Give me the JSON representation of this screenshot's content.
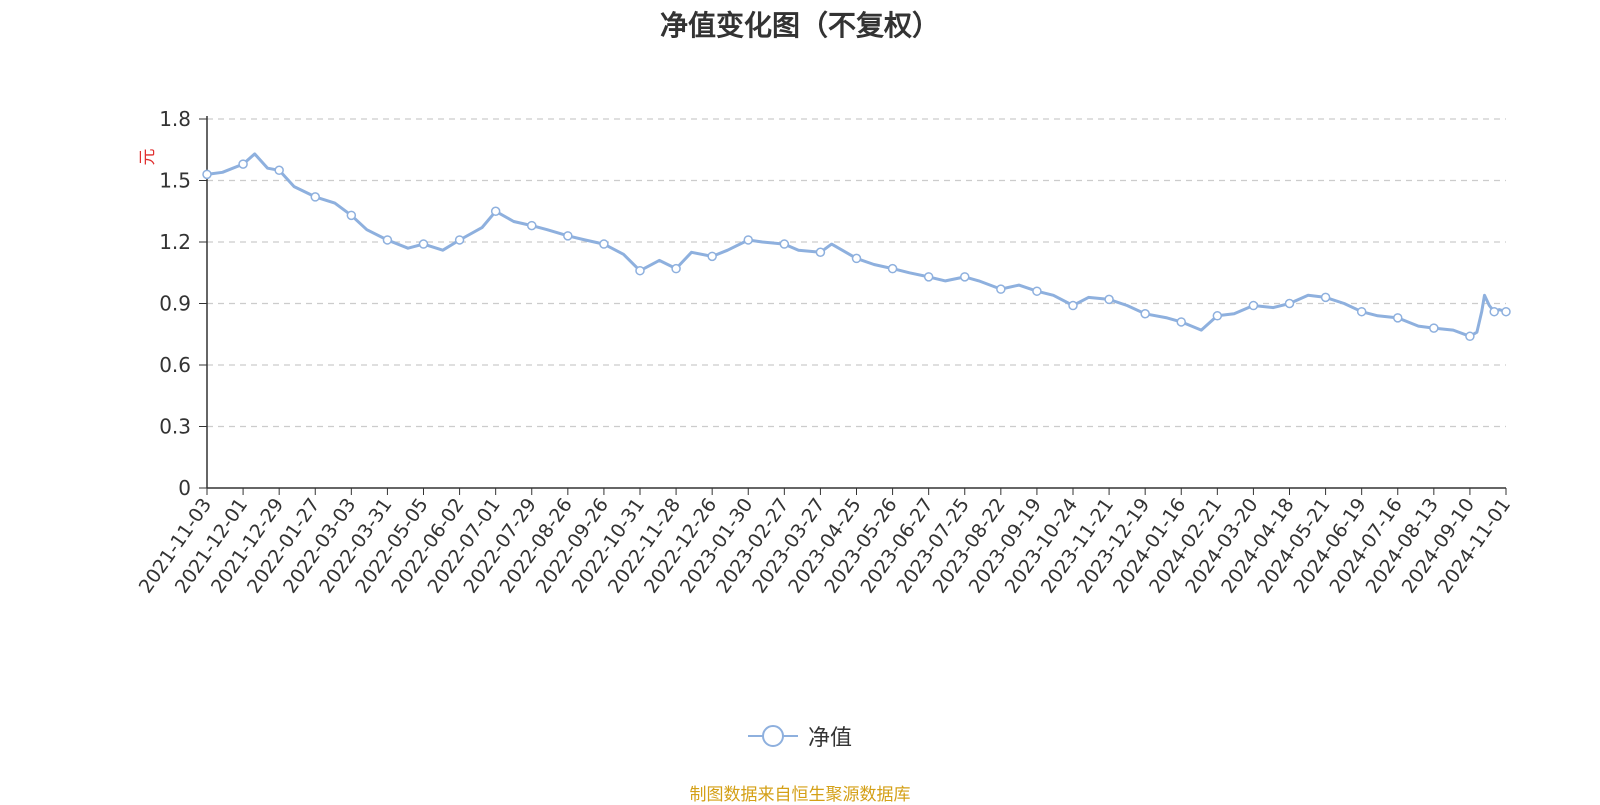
{
  "title": "净值变化图（不复权）",
  "source_note": "制图数据来自恒生聚源数据库",
  "legend_label": "净值",
  "colors": {
    "line": "#8EB0DE",
    "grid": "#cccccc",
    "axis": "#333333",
    "unit": "#e03030",
    "source": "#d4a017"
  },
  "chart_data": {
    "type": "line",
    "title": "净值变化图（不复权）",
    "ylabel": "元",
    "xlabel": "",
    "ylim": [
      0,
      1.8
    ],
    "yticks": [
      "0",
      "0.3",
      "0.6",
      "0.9",
      "1.2",
      "1.5",
      "1.8"
    ],
    "grid": true,
    "legend_position": "bottom-center",
    "x_tick_labels": [
      "2021-11-03",
      "2021-12-01",
      "2021-12-29",
      "2022-01-27",
      "2022-03-03",
      "2022-03-31",
      "2022-05-05",
      "2022-06-02",
      "2022-07-01",
      "2022-07-29",
      "2022-08-26",
      "2022-09-26",
      "2022-10-31",
      "2022-11-28",
      "2022-12-26",
      "2023-01-30",
      "2023-02-27",
      "2023-03-27",
      "2023-04-25",
      "2023-05-26",
      "2023-06-27",
      "2023-07-25",
      "2023-08-22",
      "2023-09-19",
      "2023-10-24",
      "2023-11-21",
      "2023-12-19",
      "2024-01-16",
      "2024-02-21",
      "2024-03-20",
      "2024-04-18",
      "2024-05-21",
      "2024-06-19",
      "2024-07-16",
      "2024-08-13",
      "2024-09-10",
      "2024-11-01"
    ],
    "series": [
      {
        "name": "净值",
        "marker": "circle",
        "points": [
          [
            "2021-11-03",
            1.53
          ],
          [
            "2021-11-15",
            1.54
          ],
          [
            "2021-12-01",
            1.58
          ],
          [
            "2021-12-10",
            1.63
          ],
          [
            "2021-12-20",
            1.56
          ],
          [
            "2021-12-29",
            1.55
          ],
          [
            "2022-01-10",
            1.47
          ],
          [
            "2022-01-27",
            1.42
          ],
          [
            "2022-02-15",
            1.39
          ],
          [
            "2022-03-03",
            1.33
          ],
          [
            "2022-03-15",
            1.26
          ],
          [
            "2022-03-31",
            1.21
          ],
          [
            "2022-04-20",
            1.17
          ],
          [
            "2022-05-05",
            1.19
          ],
          [
            "2022-05-20",
            1.16
          ],
          [
            "2022-06-02",
            1.21
          ],
          [
            "2022-06-20",
            1.27
          ],
          [
            "2022-07-01",
            1.35
          ],
          [
            "2022-07-15",
            1.3
          ],
          [
            "2022-07-29",
            1.28
          ],
          [
            "2022-08-10",
            1.26
          ],
          [
            "2022-08-26",
            1.23
          ],
          [
            "2022-09-10",
            1.21
          ],
          [
            "2022-09-26",
            1.19
          ],
          [
            "2022-10-15",
            1.14
          ],
          [
            "2022-10-31",
            1.06
          ],
          [
            "2022-11-15",
            1.11
          ],
          [
            "2022-11-28",
            1.07
          ],
          [
            "2022-12-10",
            1.15
          ],
          [
            "2022-12-26",
            1.13
          ],
          [
            "2023-01-10",
            1.16
          ],
          [
            "2023-01-30",
            1.21
          ],
          [
            "2023-02-10",
            1.2
          ],
          [
            "2023-02-27",
            1.19
          ],
          [
            "2023-03-10",
            1.16
          ],
          [
            "2023-03-27",
            1.15
          ],
          [
            "2023-04-05",
            1.19
          ],
          [
            "2023-04-25",
            1.12
          ],
          [
            "2023-05-10",
            1.09
          ],
          [
            "2023-05-26",
            1.07
          ],
          [
            "2023-06-10",
            1.05
          ],
          [
            "2023-06-27",
            1.03
          ],
          [
            "2023-07-10",
            1.01
          ],
          [
            "2023-07-25",
            1.03
          ],
          [
            "2023-08-05",
            1.01
          ],
          [
            "2023-08-22",
            0.97
          ],
          [
            "2023-09-05",
            0.99
          ],
          [
            "2023-09-19",
            0.96
          ],
          [
            "2023-10-05",
            0.94
          ],
          [
            "2023-10-24",
            0.89
          ],
          [
            "2023-11-05",
            0.93
          ],
          [
            "2023-11-21",
            0.92
          ],
          [
            "2023-12-05",
            0.89
          ],
          [
            "2023-12-19",
            0.85
          ],
          [
            "2024-01-05",
            0.83
          ],
          [
            "2024-01-16",
            0.81
          ],
          [
            "2024-02-05",
            0.77
          ],
          [
            "2024-02-21",
            0.84
          ],
          [
            "2024-03-05",
            0.85
          ],
          [
            "2024-03-20",
            0.89
          ],
          [
            "2024-04-05",
            0.88
          ],
          [
            "2024-04-18",
            0.9
          ],
          [
            "2024-05-05",
            0.94
          ],
          [
            "2024-05-21",
            0.93
          ],
          [
            "2024-06-05",
            0.9
          ],
          [
            "2024-06-19",
            0.86
          ],
          [
            "2024-07-01",
            0.84
          ],
          [
            "2024-07-16",
            0.83
          ],
          [
            "2024-08-01",
            0.79
          ],
          [
            "2024-08-13",
            0.78
          ],
          [
            "2024-08-28",
            0.77
          ],
          [
            "2024-09-10",
            0.74
          ],
          [
            "2024-09-20",
            0.76
          ],
          [
            "2024-09-27",
            0.86
          ],
          [
            "2024-10-01",
            0.94
          ],
          [
            "2024-10-08",
            0.89
          ],
          [
            "2024-10-15",
            0.86
          ],
          [
            "2024-10-22",
            0.87
          ],
          [
            "2024-11-01",
            0.86
          ]
        ],
        "marker_dates": [
          "2021-11-03",
          "2021-12-01",
          "2021-12-29",
          "2022-01-27",
          "2022-03-03",
          "2022-03-31",
          "2022-05-05",
          "2022-06-02",
          "2022-07-01",
          "2022-07-29",
          "2022-08-26",
          "2022-09-26",
          "2022-10-31",
          "2022-11-28",
          "2022-12-26",
          "2023-01-30",
          "2023-02-27",
          "2023-03-27",
          "2023-04-25",
          "2023-05-26",
          "2023-06-27",
          "2023-07-25",
          "2023-08-22",
          "2023-09-19",
          "2023-10-24",
          "2023-11-21",
          "2023-12-19",
          "2024-01-16",
          "2024-02-21",
          "2024-03-20",
          "2024-04-18",
          "2024-05-21",
          "2024-06-19",
          "2024-07-16",
          "2024-08-13",
          "2024-09-10",
          "2024-10-15",
          "2024-11-01"
        ]
      }
    ]
  }
}
